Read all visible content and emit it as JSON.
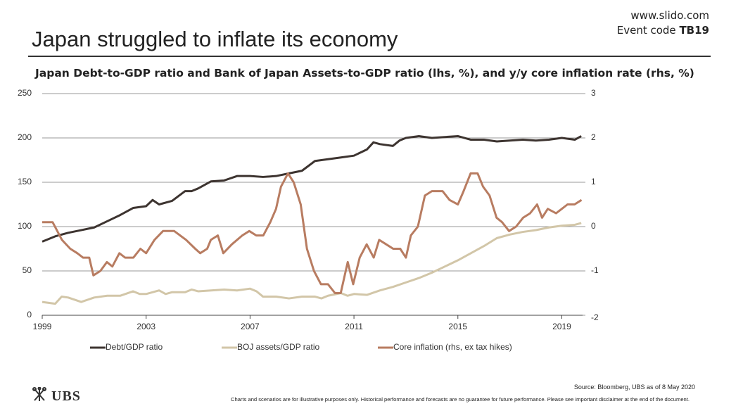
{
  "header": {
    "title": "Japan struggled to inflate its economy",
    "slido_url": "www.slido.com",
    "event_code_label": "Event code",
    "event_code": "TB19"
  },
  "chart_data": {
    "type": "line",
    "title": "Japan Debt-to-GDP ratio and Bank of Japan Assets-to-GDP ratio (lhs, %), and y/y core inflation rate (rhs, %)",
    "xlim": [
      1999,
      2019.8
    ],
    "xticks": [
      1999,
      2003,
      2007,
      2011,
      2015,
      2019
    ],
    "ylim": [
      0,
      250
    ],
    "yticks": [
      0,
      50,
      100,
      150,
      200,
      250
    ],
    "y2lim": [
      -2,
      3
    ],
    "y2ticks": [
      -2,
      -1,
      0,
      1,
      2,
      3
    ],
    "grid": true,
    "legend": "bottom",
    "series": [
      {
        "name": "Debt/GDP ratio",
        "color": "#3d3430",
        "x": [
          1999,
          1999.5,
          2000,
          2000.5,
          2001,
          2001.5,
          2002,
          2002.5,
          2003,
          2003.25,
          2003.5,
          2004,
          2004.5,
          2004.75,
          2005,
          2005.5,
          2006,
          2006.5,
          2007,
          2007.5,
          2008,
          2008.5,
          2009,
          2009.5,
          2010,
          2010.5,
          2011,
          2011.5,
          2011.75,
          2012,
          2012.5,
          2012.75,
          2013,
          2013.5,
          2014,
          2014.5,
          2015,
          2015.5,
          2016,
          2016.5,
          2017,
          2017.5,
          2018,
          2018.5,
          2019,
          2019.5,
          2019.75
        ],
        "values": [
          83,
          89,
          93,
          96,
          99,
          106,
          113,
          121,
          123,
          130,
          125,
          129,
          140,
          140,
          143,
          151,
          152,
          157,
          157,
          156,
          157,
          160,
          163,
          174,
          176,
          178,
          180,
          187,
          195,
          193,
          191,
          197,
          200,
          202,
          200,
          201,
          202,
          198,
          198,
          196,
          197,
          198,
          197,
          198,
          200,
          198,
          202
        ]
      },
      {
        "name": "BOJ assets/GDP ratio",
        "color": "#d2c6a8",
        "x": [
          1999,
          1999.5,
          1999.75,
          2000,
          2000.5,
          2001,
          2001.5,
          2002,
          2002.5,
          2002.75,
          2003,
          2003.5,
          2003.75,
          2004,
          2004.5,
          2004.75,
          2005,
          2005.5,
          2006,
          2006.5,
          2007,
          2007.25,
          2007.5,
          2008,
          2008.5,
          2009,
          2009.5,
          2009.75,
          2010,
          2010.5,
          2010.75,
          2011,
          2011.5,
          2012,
          2012.5,
          2013,
          2013.5,
          2014,
          2014.5,
          2015,
          2015.5,
          2016,
          2016.5,
          2017,
          2017.5,
          2018,
          2018.5,
          2019,
          2019.5,
          2019.75
        ],
        "values": [
          15,
          13,
          21,
          20,
          15,
          20,
          22,
          22,
          27,
          24,
          24,
          28,
          24,
          26,
          26,
          29,
          27,
          28,
          29,
          28,
          30,
          27,
          21,
          21,
          19,
          21,
          21,
          19,
          22,
          25,
          22,
          24,
          23,
          28,
          32,
          37,
          42,
          48,
          55,
          62,
          70,
          78,
          87,
          91,
          94,
          96,
          99,
          101,
          102,
          104
        ]
      },
      {
        "name": "Core inflation (rhs, ex tax hikes)",
        "color": "#b87c61",
        "axis": "y2",
        "x": [
          1999,
          1999.4,
          1999.76,
          2000.08,
          2000.35,
          2000.57,
          2000.81,
          2000.97,
          2001.24,
          2001.49,
          2001.7,
          2001.97,
          2002.19,
          2002.51,
          2002.78,
          2003,
          2003.32,
          2003.65,
          2003.86,
          2004.08,
          2004.54,
          2004.89,
          2005.08,
          2005.35,
          2005.49,
          2005.76,
          2005.97,
          2006.3,
          2006.7,
          2006.97,
          2007.24,
          2007.51,
          2007.78,
          2008,
          2008.19,
          2008.46,
          2008.68,
          2008.95,
          2009.19,
          2009.46,
          2009.73,
          2010,
          2010.27,
          2010.49,
          2010.76,
          2010.97,
          2011.22,
          2011.49,
          2011.76,
          2011.97,
          2012.24,
          2012.51,
          2012.78,
          2013,
          2013.19,
          2013.46,
          2013.73,
          2014,
          2014.41,
          2014.68,
          2015,
          2015.22,
          2015.49,
          2015.76,
          2015.97,
          2016.22,
          2016.49,
          2016.7,
          2016.97,
          2017.24,
          2017.51,
          2017.78,
          2018.05,
          2018.24,
          2018.46,
          2018.78,
          2019,
          2019.22,
          2019.49,
          2019.76
        ],
        "values": [
          0.1,
          0.1,
          -0.3,
          -0.5,
          -0.6,
          -0.7,
          -0.7,
          -1.1,
          -1.0,
          -0.8,
          -0.9,
          -0.6,
          -0.7,
          -0.7,
          -0.5,
          -0.6,
          -0.3,
          -0.1,
          -0.1,
          -0.1,
          -0.3,
          -0.5,
          -0.6,
          -0.5,
          -0.3,
          -0.2,
          -0.6,
          -0.4,
          -0.2,
          -0.1,
          -0.2,
          -0.2,
          0.1,
          0.4,
          0.9,
          1.2,
          1.0,
          0.5,
          -0.5,
          -1.0,
          -1.3,
          -1.3,
          -1.5,
          -1.5,
          -0.8,
          -1.3,
          -0.7,
          -0.4,
          -0.7,
          -0.3,
          -0.4,
          -0.5,
          -0.5,
          -0.7,
          -0.2,
          0,
          0.7,
          0.8,
          0.8,
          0.6,
          0.5,
          0.8,
          1.2,
          1.2,
          0.9,
          0.7,
          0.2,
          0.1,
          -0.1,
          0,
          0.2,
          0.3,
          0.5,
          0.2,
          0.4,
          0.3,
          0.4,
          0.5,
          0.5,
          0.6
        ]
      }
    ]
  },
  "footer": {
    "logo": "UBS",
    "source": "Source: Bloomberg, UBS as of 8 May 2020",
    "disclaimer": "Charts and scenarios are for illustrative purposes only. Historical performance and forecasts are no guarantee for future performance. Please see important disclaimer at the end of the document."
  }
}
